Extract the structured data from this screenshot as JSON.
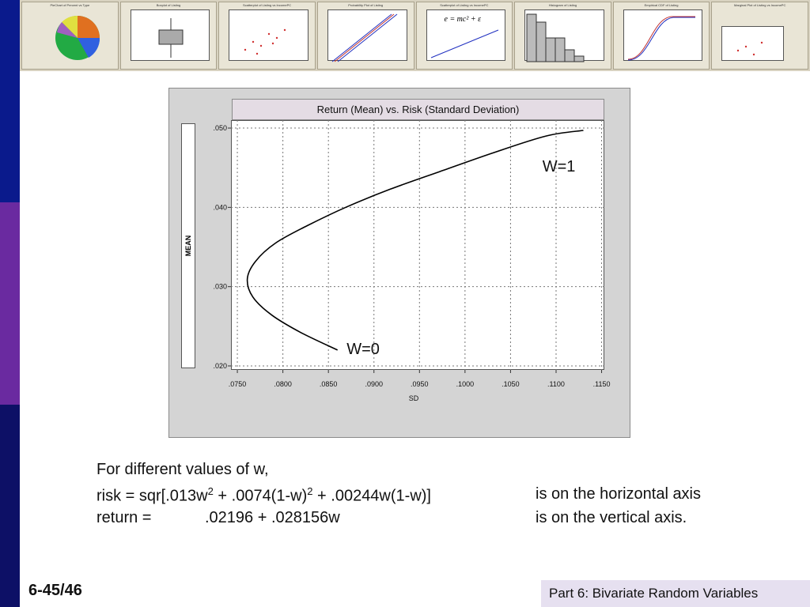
{
  "slide": {
    "number": "6-45/46",
    "footer": "Part 6: Bivariate Random Variables",
    "colors": {
      "band_top": "#0a1a8c",
      "band_mid": "#6a2aa0",
      "band_bottom": "#0d1066"
    }
  },
  "thumbnails": [
    "PieChart of Percent vs Type",
    "Boxplot of Listing",
    "Scatterplot of Listing vs IncomePC",
    "Probability Plot of Listing",
    "Scatterplot of Listing vs IncomePC",
    "Histogram of Listing",
    "Empirical CDF of Listing",
    "Marginal Plot of Listing vs IncomePC"
  ],
  "thumbnail_formula": "e = mc² + ε",
  "chart_data": {
    "type": "line",
    "title": "Return (Mean) vs. Risk (Standard Deviation)",
    "xlabel": "SD",
    "ylabel": "MEAN",
    "xlim": [
      0.075,
      0.115
    ],
    "ylim": [
      0.02,
      0.05
    ],
    "xticks": [
      ".0750",
      ".0800",
      ".0850",
      ".0900",
      ".0950",
      ".1000",
      ".1050",
      ".1100",
      ".1150"
    ],
    "yticks": [
      ".020",
      ".030",
      ".040",
      ".050"
    ],
    "grid": true,
    "line_color": "#000000",
    "series": [
      {
        "x": [
          0.086,
          0.082,
          0.0788,
          0.0767,
          0.0761,
          0.077,
          0.0792,
          0.0827,
          0.0869,
          0.0918,
          0.0972,
          0.1029,
          0.1089,
          0.113
        ],
        "y": [
          0.022,
          0.0242,
          0.0264,
          0.0287,
          0.031,
          0.0332,
          0.0355,
          0.0377,
          0.04,
          0.0423,
          0.0445,
          0.0468,
          0.049,
          0.0497
        ]
      }
    ],
    "annotations": [
      {
        "text": "W=1",
        "x": 0.1085,
        "y": 0.0445
      },
      {
        "text": "W=0",
        "x": 0.087,
        "y": 0.0215
      }
    ]
  },
  "description": {
    "line1": "For different values of w,",
    "risk_prefix": "risk = sqr[.013w",
    "sup1": "2",
    "risk_mid": " + .0074(1-w)",
    "sup2": "2",
    "risk_suffix": " + .00244w(1-w)]",
    "risk_note": "is on the horizontal axis",
    "return_label": "return =",
    "return_formula": ".02196 + .028156w",
    "return_note": "is on the vertical axis."
  }
}
